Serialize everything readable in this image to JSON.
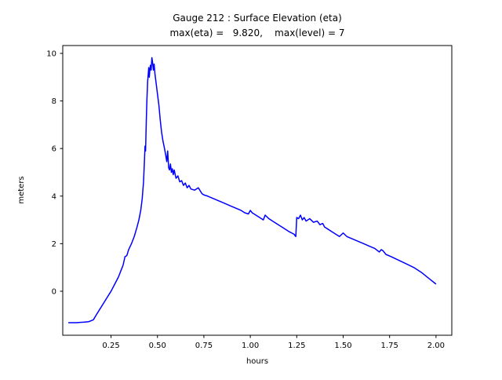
{
  "chart_data": {
    "type": "line",
    "title": "Gauge 212 : Surface Elevation (eta)",
    "subtitle": "max(eta) =   9.820,    max(level) = 7",
    "xlabel": "hours",
    "ylabel": "meters",
    "xlim": [
      -0.01,
      2.085
    ],
    "ylim": [
      -1.85,
      10.33
    ],
    "xticks": [
      0.25,
      0.5,
      0.75,
      1.0,
      1.25,
      1.5,
      1.75,
      2.0
    ],
    "xtick_labels": [
      "0.25",
      "0.50",
      "0.75",
      "1.00",
      "1.25",
      "1.50",
      "1.75",
      "2.00"
    ],
    "yticks": [
      0,
      2,
      4,
      6,
      8,
      10
    ],
    "ytick_labels": [
      "0",
      "2",
      "4",
      "6",
      "8",
      "10"
    ],
    "grid": false,
    "legend": "none",
    "line_color": "#0000ff",
    "series": [
      {
        "name": "eta",
        "x": [
          0.02,
          0.06,
          0.1,
          0.13,
          0.155,
          0.17,
          0.19,
          0.21,
          0.23,
          0.25,
          0.27,
          0.29,
          0.305,
          0.315,
          0.325,
          0.335,
          0.345,
          0.36,
          0.375,
          0.39,
          0.4,
          0.41,
          0.418,
          0.425,
          0.43,
          0.433,
          0.436,
          0.44,
          0.443,
          0.447,
          0.45,
          0.453,
          0.456,
          0.459,
          0.462,
          0.466,
          0.47,
          0.474,
          0.478,
          0.482,
          0.487,
          0.492,
          0.5,
          0.508,
          0.515,
          0.522,
          0.53,
          0.538,
          0.545,
          0.55,
          0.555,
          0.56,
          0.565,
          0.57,
          0.575,
          0.58,
          0.585,
          0.59,
          0.6,
          0.61,
          0.62,
          0.63,
          0.64,
          0.65,
          0.66,
          0.67,
          0.68,
          0.7,
          0.72,
          0.74,
          0.75,
          0.77,
          0.8,
          0.83,
          0.86,
          0.89,
          0.92,
          0.95,
          0.97,
          0.99,
          1.0,
          1.01,
          1.03,
          1.05,
          1.07,
          1.08,
          1.1,
          1.12,
          1.15,
          1.18,
          1.21,
          1.235,
          1.245,
          1.25,
          1.26,
          1.27,
          1.28,
          1.29,
          1.3,
          1.32,
          1.34,
          1.36,
          1.375,
          1.39,
          1.4,
          1.42,
          1.44,
          1.46,
          1.48,
          1.5,
          1.52,
          1.55,
          1.58,
          1.61,
          1.64,
          1.67,
          1.695,
          1.705,
          1.715,
          1.73,
          1.76,
          1.8,
          1.84,
          1.88,
          1.92,
          1.96,
          2.0
        ],
        "y": [
          -1.32,
          -1.32,
          -1.3,
          -1.28,
          -1.2,
          -1.0,
          -0.75,
          -0.5,
          -0.25,
          0.0,
          0.3,
          0.6,
          0.9,
          1.1,
          1.45,
          1.5,
          1.75,
          2.0,
          2.3,
          2.7,
          3.0,
          3.4,
          3.9,
          4.6,
          5.5,
          6.1,
          5.9,
          7.2,
          8.0,
          8.8,
          9.1,
          9.4,
          9.0,
          9.3,
          9.5,
          9.3,
          9.82,
          9.6,
          9.3,
          9.55,
          9.1,
          8.8,
          8.3,
          7.8,
          7.2,
          6.7,
          6.3,
          6.0,
          5.7,
          5.45,
          5.9,
          5.2,
          5.1,
          5.35,
          5.0,
          5.15,
          4.9,
          5.1,
          4.75,
          4.85,
          4.6,
          4.65,
          4.45,
          4.55,
          4.35,
          4.45,
          4.3,
          4.25,
          4.35,
          4.1,
          4.05,
          4.0,
          3.9,
          3.8,
          3.7,
          3.6,
          3.5,
          3.4,
          3.3,
          3.25,
          3.4,
          3.3,
          3.2,
          3.1,
          3.0,
          3.2,
          3.05,
          2.95,
          2.8,
          2.65,
          2.5,
          2.4,
          2.3,
          3.1,
          3.05,
          3.2,
          3.0,
          3.1,
          2.95,
          3.05,
          2.9,
          2.95,
          2.8,
          2.85,
          2.7,
          2.6,
          2.5,
          2.4,
          2.3,
          2.45,
          2.3,
          2.2,
          2.1,
          2.0,
          1.9,
          1.8,
          1.65,
          1.75,
          1.7,
          1.55,
          1.45,
          1.3,
          1.15,
          1.0,
          0.8,
          0.55,
          0.3
        ]
      }
    ]
  }
}
